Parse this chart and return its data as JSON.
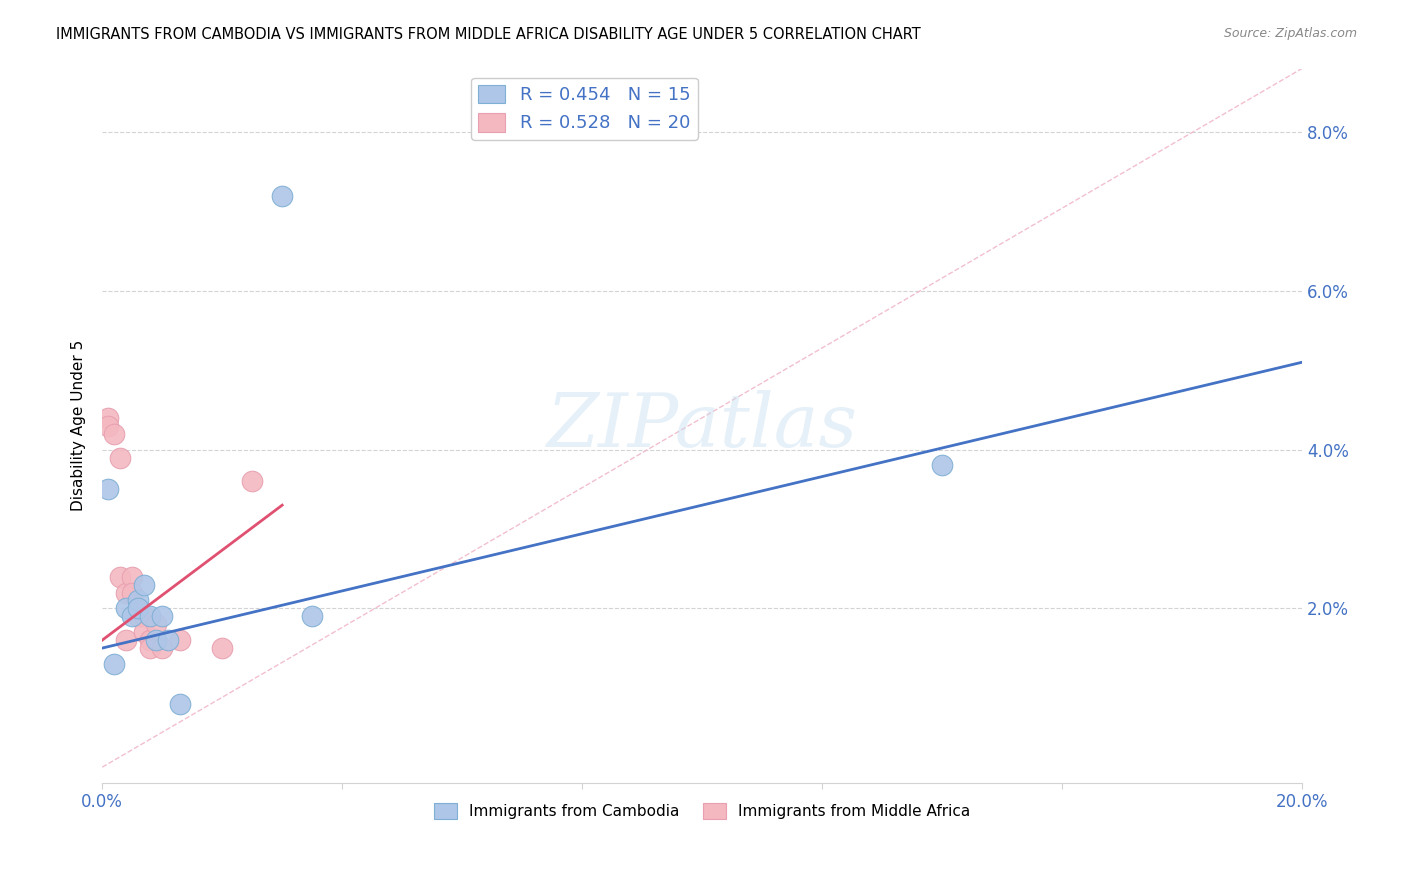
{
  "title": "IMMIGRANTS FROM CAMBODIA VS IMMIGRANTS FROM MIDDLE AFRICA DISABILITY AGE UNDER 5 CORRELATION CHART",
  "source": "Source: ZipAtlas.com",
  "ylabel": "Disability Age Under 5",
  "yticks": [
    0.0,
    0.02,
    0.04,
    0.06,
    0.08
  ],
  "ytick_labels": [
    "",
    "2.0%",
    "4.0%",
    "6.0%",
    "8.0%"
  ],
  "xlim": [
    0.0,
    0.2
  ],
  "ylim": [
    -0.002,
    0.088
  ],
  "legend_entries": [
    {
      "label": "R = 0.454   N = 15",
      "color": "#aec6e8"
    },
    {
      "label": "R = 0.528   N = 20",
      "color": "#f4b8c1"
    }
  ],
  "legend_bottom": [
    {
      "label": "Immigrants from Cambodia",
      "color": "#aec6e8"
    },
    {
      "label": "Immigrants from Middle Africa",
      "color": "#f4b8c1"
    }
  ],
  "watermark": "ZIPatlas",
  "cambodia_points": [
    [
      0.001,
      0.035
    ],
    [
      0.002,
      0.013
    ],
    [
      0.004,
      0.02
    ],
    [
      0.005,
      0.019
    ],
    [
      0.006,
      0.021
    ],
    [
      0.006,
      0.02
    ],
    [
      0.007,
      0.023
    ],
    [
      0.008,
      0.019
    ],
    [
      0.009,
      0.016
    ],
    [
      0.01,
      0.019
    ],
    [
      0.011,
      0.016
    ],
    [
      0.013,
      0.008
    ],
    [
      0.035,
      0.019
    ],
    [
      0.14,
      0.038
    ],
    [
      0.03,
      0.072
    ]
  ],
  "middle_africa_points": [
    [
      0.001,
      0.044
    ],
    [
      0.001,
      0.043
    ],
    [
      0.002,
      0.042
    ],
    [
      0.003,
      0.024
    ],
    [
      0.003,
      0.039
    ],
    [
      0.004,
      0.022
    ],
    [
      0.004,
      0.016
    ],
    [
      0.005,
      0.024
    ],
    [
      0.005,
      0.022
    ],
    [
      0.006,
      0.02
    ],
    [
      0.006,
      0.019
    ],
    [
      0.007,
      0.019
    ],
    [
      0.007,
      0.017
    ],
    [
      0.008,
      0.016
    ],
    [
      0.008,
      0.015
    ],
    [
      0.009,
      0.018
    ],
    [
      0.01,
      0.015
    ],
    [
      0.013,
      0.016
    ],
    [
      0.02,
      0.015
    ],
    [
      0.025,
      0.036
    ]
  ],
  "blue_line_x": [
    0.0,
    0.2
  ],
  "blue_line_y": [
    0.015,
    0.051
  ],
  "pink_line_x": [
    0.0,
    0.03
  ],
  "pink_line_y": [
    0.016,
    0.033
  ],
  "blue_line_color": "#4472c4",
  "pink_line_color": "#e05070",
  "diagonal_line_color": "#f0b8c8",
  "grid_color": "#d3d3d3",
  "background_color": "#ffffff"
}
